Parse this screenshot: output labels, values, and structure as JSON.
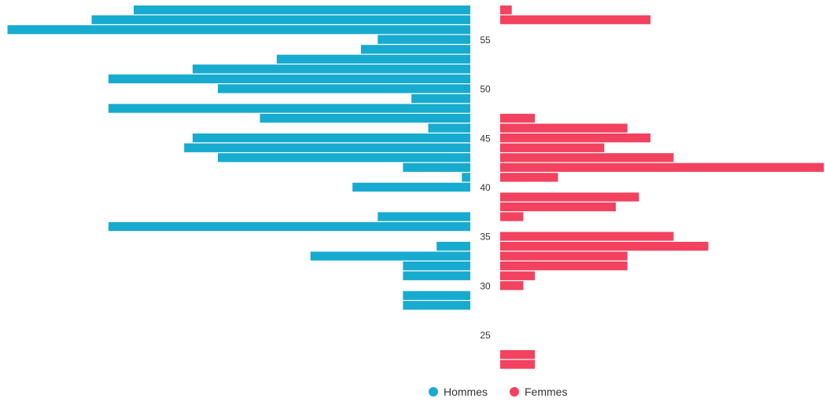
{
  "chart_data": {
    "type": "bar",
    "orientation": "horizontal-pyramid",
    "y_axis": {
      "ticks": [
        25,
        30,
        35,
        40,
        45,
        50,
        55
      ],
      "range": [
        22,
        58
      ]
    },
    "grid": false,
    "legend_position": "bottom-center",
    "series": [
      {
        "name": "Hommes",
        "color": "#17abcf",
        "points": [
          {
            "age": 58,
            "value": 40
          },
          {
            "age": 57,
            "value": 45
          },
          {
            "age": 56,
            "value": 55
          },
          {
            "age": 55,
            "value": 11
          },
          {
            "age": 54,
            "value": 13
          },
          {
            "age": 53,
            "value": 23
          },
          {
            "age": 52,
            "value": 33
          },
          {
            "age": 51,
            "value": 43
          },
          {
            "age": 50,
            "value": 30
          },
          {
            "age": 49,
            "value": 7
          },
          {
            "age": 48,
            "value": 43
          },
          {
            "age": 47,
            "value": 25
          },
          {
            "age": 46,
            "value": 5
          },
          {
            "age": 45,
            "value": 33
          },
          {
            "age": 44,
            "value": 34
          },
          {
            "age": 43,
            "value": 30
          },
          {
            "age": 42,
            "value": 8
          },
          {
            "age": 41,
            "value": 1
          },
          {
            "age": 40,
            "value": 14
          },
          {
            "age": 38,
            "value": 0
          },
          {
            "age": 37,
            "value": 11
          },
          {
            "age": 36,
            "value": 43
          },
          {
            "age": 34,
            "value": 4
          },
          {
            "age": 33,
            "value": 19
          },
          {
            "age": 32,
            "value": 8
          },
          {
            "age": 31,
            "value": 8
          },
          {
            "age": 29,
            "value": 8
          },
          {
            "age": 28,
            "value": 8
          }
        ]
      },
      {
        "name": "Femmes",
        "color": "#f2425f",
        "points": [
          {
            "age": 58,
            "value": 1
          },
          {
            "age": 57,
            "value": 13
          },
          {
            "age": 47,
            "value": 3
          },
          {
            "age": 46,
            "value": 11
          },
          {
            "age": 45,
            "value": 13
          },
          {
            "age": 44,
            "value": 9
          },
          {
            "age": 43,
            "value": 15
          },
          {
            "age": 42,
            "value": 28
          },
          {
            "age": 41,
            "value": 5
          },
          {
            "age": 39,
            "value": 12
          },
          {
            "age": 38,
            "value": 10
          },
          {
            "age": 37,
            "value": 2
          },
          {
            "age": 35,
            "value": 15
          },
          {
            "age": 34,
            "value": 18
          },
          {
            "age": 33,
            "value": 11
          },
          {
            "age": 32,
            "value": 11
          },
          {
            "age": 31,
            "value": 3
          },
          {
            "age": 30,
            "value": 2
          },
          {
            "age": 23,
            "value": 3
          },
          {
            "age": 22,
            "value": 3
          }
        ]
      }
    ],
    "legend": [
      {
        "name": "Hommes",
        "color": "#17abcf"
      },
      {
        "name": "Femmes",
        "color": "#f2425f"
      }
    ]
  }
}
